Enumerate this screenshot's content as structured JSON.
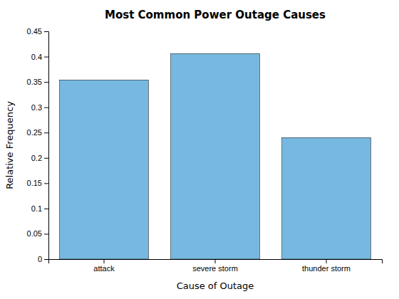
{
  "chart_data": {
    "type": "bar",
    "title": "Most Common Power Outage Causes",
    "xlabel": "Cause of Outage",
    "ylabel": "Relative Frequency",
    "categories": [
      "attack",
      "severe storm",
      "thunder storm"
    ],
    "values": [
      0.354,
      0.406,
      0.24
    ],
    "color": "#77b8e0",
    "ylim": [
      0,
      0.45
    ],
    "yticks": [
      0,
      0.05,
      0.1,
      0.15,
      0.2,
      0.25,
      0.3,
      0.35,
      0.4,
      0.45
    ],
    "grid": false
  }
}
